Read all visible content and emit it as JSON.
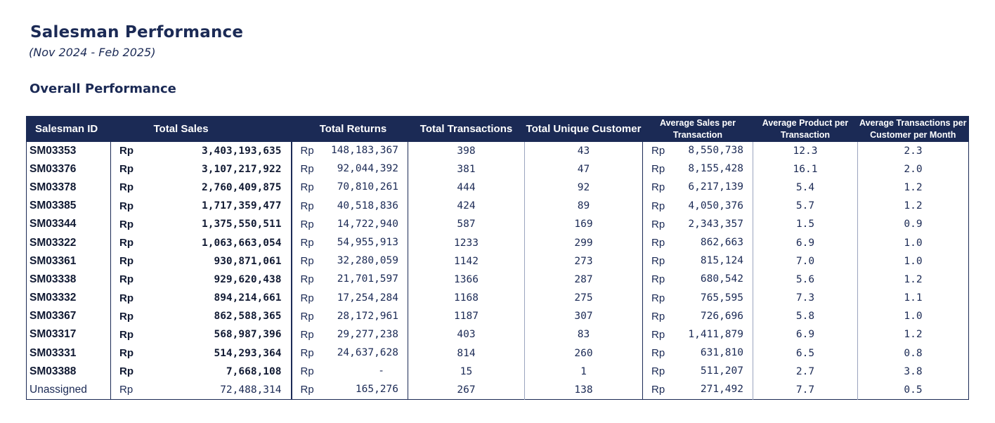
{
  "header": {
    "title": "Salesman Performance",
    "subtitle": "(Nov 2024 - Feb 2025)",
    "section_title": "Overall Performance"
  },
  "table": {
    "columns": {
      "salesman_id": "Salesman ID",
      "total_sales": "Total Sales",
      "total_returns": "Total Returns",
      "total_transactions": "Total Transactions",
      "total_unique_customer": "Total Unique Customer",
      "avg_sales_per_transaction": "Average Sales per Transaction",
      "avg_product_per_transaction": "Average Product per Transaction",
      "avg_transactions_per_customer_month": "Average Transactions per Customer per Month"
    },
    "currency": "Rp",
    "rows": [
      {
        "id": "SM03353",
        "sales": "3,403,193,635",
        "returns": "148,183,367",
        "transactions": "398",
        "customers": "43",
        "avg_sales": "8,550,738",
        "avg_product": "12.3",
        "avg_tx_cust": "2.3"
      },
      {
        "id": "SM03376",
        "sales": "3,107,217,922",
        "returns": "92,044,392",
        "transactions": "381",
        "customers": "47",
        "avg_sales": "8,155,428",
        "avg_product": "16.1",
        "avg_tx_cust": "2.0"
      },
      {
        "id": "SM03378",
        "sales": "2,760,409,875",
        "returns": "70,810,261",
        "transactions": "444",
        "customers": "92",
        "avg_sales": "6,217,139",
        "avg_product": "5.4",
        "avg_tx_cust": "1.2"
      },
      {
        "id": "SM03385",
        "sales": "1,717,359,477",
        "returns": "40,518,836",
        "transactions": "424",
        "customers": "89",
        "avg_sales": "4,050,376",
        "avg_product": "5.7",
        "avg_tx_cust": "1.2"
      },
      {
        "id": "SM03344",
        "sales": "1,375,550,511",
        "returns": "14,722,940",
        "transactions": "587",
        "customers": "169",
        "avg_sales": "2,343,357",
        "avg_product": "1.5",
        "avg_tx_cust": "0.9"
      },
      {
        "id": "SM03322",
        "sales": "1,063,663,054",
        "returns": "54,955,913",
        "transactions": "1233",
        "customers": "299",
        "avg_sales": "862,663",
        "avg_product": "6.9",
        "avg_tx_cust": "1.0"
      },
      {
        "id": "SM03361",
        "sales": "930,871,061",
        "returns": "32,280,059",
        "transactions": "1142",
        "customers": "273",
        "avg_sales": "815,124",
        "avg_product": "7.0",
        "avg_tx_cust": "1.0"
      },
      {
        "id": "SM03338",
        "sales": "929,620,438",
        "returns": "21,701,597",
        "transactions": "1366",
        "customers": "287",
        "avg_sales": "680,542",
        "avg_product": "5.6",
        "avg_tx_cust": "1.2"
      },
      {
        "id": "SM03332",
        "sales": "894,214,661",
        "returns": "17,254,284",
        "transactions": "1168",
        "customers": "275",
        "avg_sales": "765,595",
        "avg_product": "7.3",
        "avg_tx_cust": "1.1"
      },
      {
        "id": "SM03367",
        "sales": "862,588,365",
        "returns": "28,172,961",
        "transactions": "1187",
        "customers": "307",
        "avg_sales": "726,696",
        "avg_product": "5.8",
        "avg_tx_cust": "1.0"
      },
      {
        "id": "SM03317",
        "sales": "568,987,396",
        "returns": "29,277,238",
        "transactions": "403",
        "customers": "83",
        "avg_sales": "1,411,879",
        "avg_product": "6.9",
        "avg_tx_cust": "1.2"
      },
      {
        "id": "SM03331",
        "sales": "514,293,364",
        "returns": "24,637,628",
        "transactions": "814",
        "customers": "260",
        "avg_sales": "631,810",
        "avg_product": "6.5",
        "avg_tx_cust": "0.8"
      },
      {
        "id": "SM03388",
        "sales": "7,668,108",
        "returns": "-",
        "transactions": "15",
        "customers": "1",
        "avg_sales": "511,207",
        "avg_product": "2.7",
        "avg_tx_cust": "3.8"
      },
      {
        "id": "Unassigned",
        "sales": "72,488,314",
        "returns": "165,276",
        "transactions": "267",
        "customers": "138",
        "avg_sales": "271,492",
        "avg_product": "7.7",
        "avg_tx_cust": "0.5",
        "plain": true
      }
    ]
  }
}
